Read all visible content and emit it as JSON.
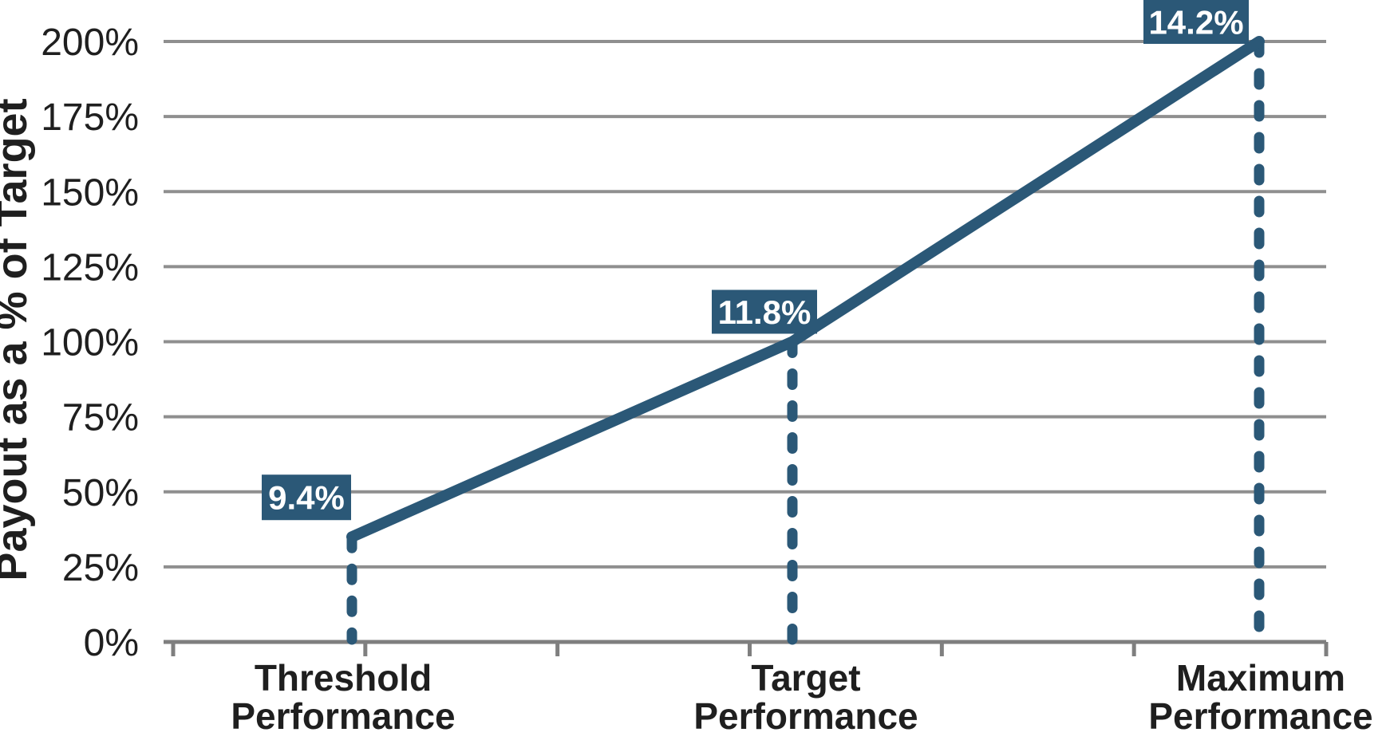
{
  "chart_data": {
    "type": "line",
    "title": "",
    "xlabel": "",
    "ylabel": "Payout as a % of Target",
    "ylim": [
      0,
      200
    ],
    "y_tick_step": 25,
    "y_tick_labels": [
      "0%",
      "25%",
      "50%",
      "75%",
      "100%",
      "125%",
      "150%",
      "175%",
      "200%"
    ],
    "categories": [
      "Threshold Performance",
      "Target Performance",
      "Maximum Performance"
    ],
    "grid": true,
    "legend": false,
    "series": [
      {
        "name": "Payout as a % of Target",
        "points": [
          {
            "category": "Threshold Performance",
            "payout_pct_of_target": 35,
            "data_label": "9.4%"
          },
          {
            "category": "Target Performance",
            "payout_pct_of_target": 100,
            "data_label": "11.8%"
          },
          {
            "category": "Maximum Performance",
            "payout_pct_of_target": 200,
            "data_label": "14.2%"
          }
        ]
      }
    ],
    "colors": {
      "line": "#2B5877",
      "dashed_dropline": "#2B5877",
      "data_label_box": "#2B5877",
      "data_label_text": "#FFFFFF",
      "gridline": "#8F8F8F",
      "axis": "#7F7F7F",
      "text": "#1F1F1F"
    }
  }
}
